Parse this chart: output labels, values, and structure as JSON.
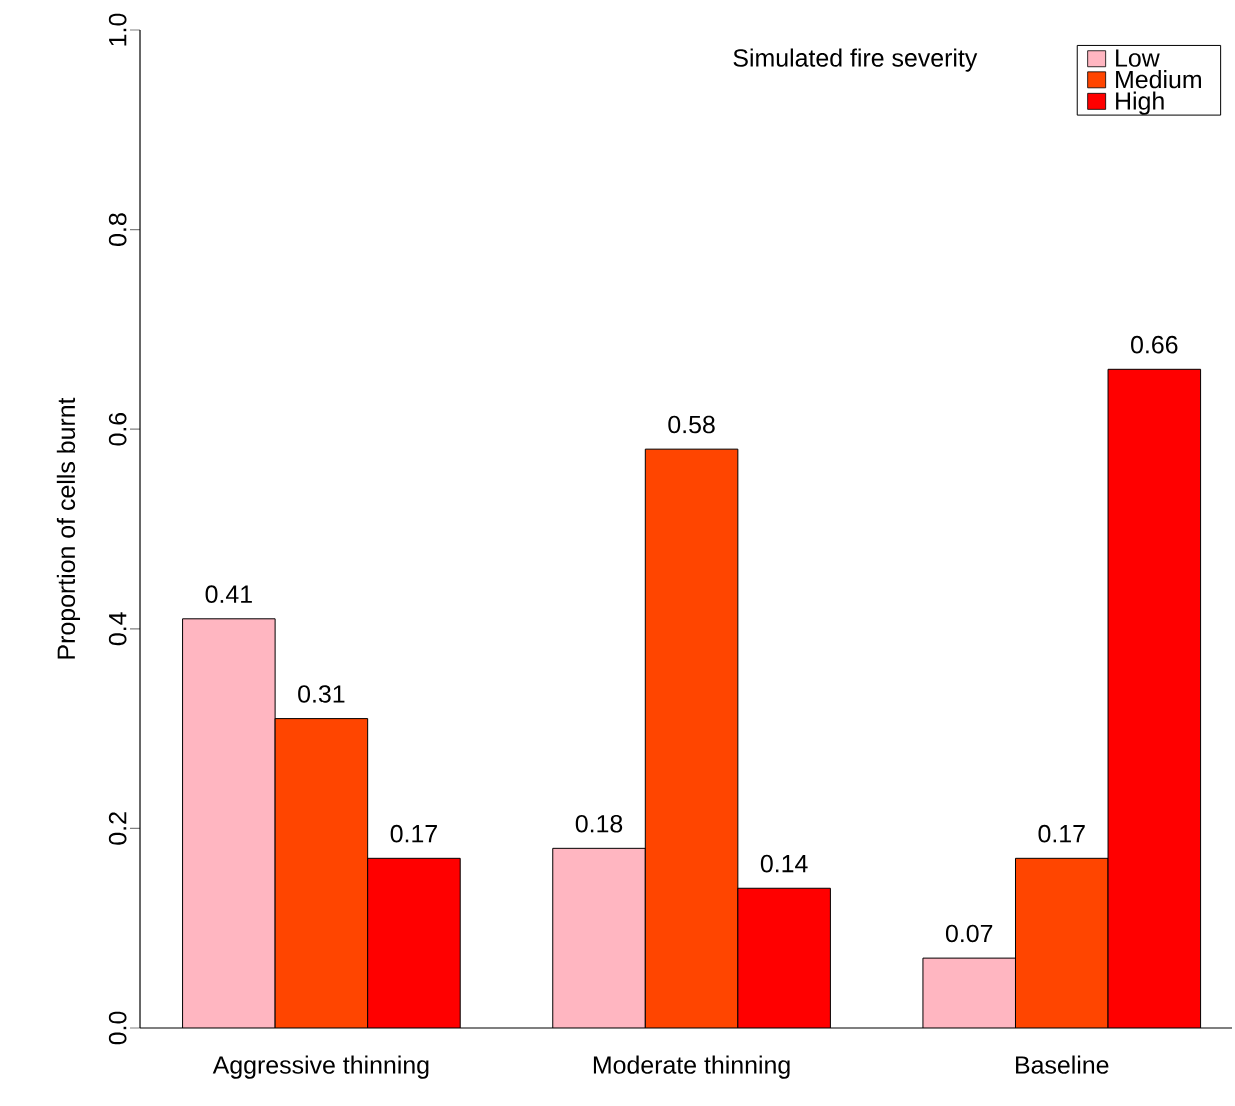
{
  "chart_data": {
    "type": "bar",
    "categories": [
      "Aggressive thinning",
      "Moderate thinning",
      "Baseline"
    ],
    "series": [
      {
        "name": "Low",
        "color": "#ffb6c1",
        "values": [
          0.41,
          0.18,
          0.07
        ]
      },
      {
        "name": "Medium",
        "color": "#ff4500",
        "values": [
          0.31,
          0.58,
          0.17
        ]
      },
      {
        "name": "High",
        "color": "#ff0000",
        "values": [
          0.17,
          0.14,
          0.66
        ]
      }
    ],
    "ylabel": "Proportion of cells burnt",
    "legend_title": "Simulated fire severity",
    "ylim": [
      0,
      1
    ],
    "yticks": [
      {
        "value": 0,
        "label": "0.0"
      },
      {
        "value": 0.2,
        "label": "0.2"
      },
      {
        "value": 0.4,
        "label": "0.4"
      },
      {
        "value": 0.6,
        "label": "0.6"
      },
      {
        "value": 0.8,
        "label": "0.8"
      },
      {
        "value": 1,
        "label": "1.0"
      }
    ],
    "data_labels": true,
    "legend": "top right",
    "grid": false
  }
}
